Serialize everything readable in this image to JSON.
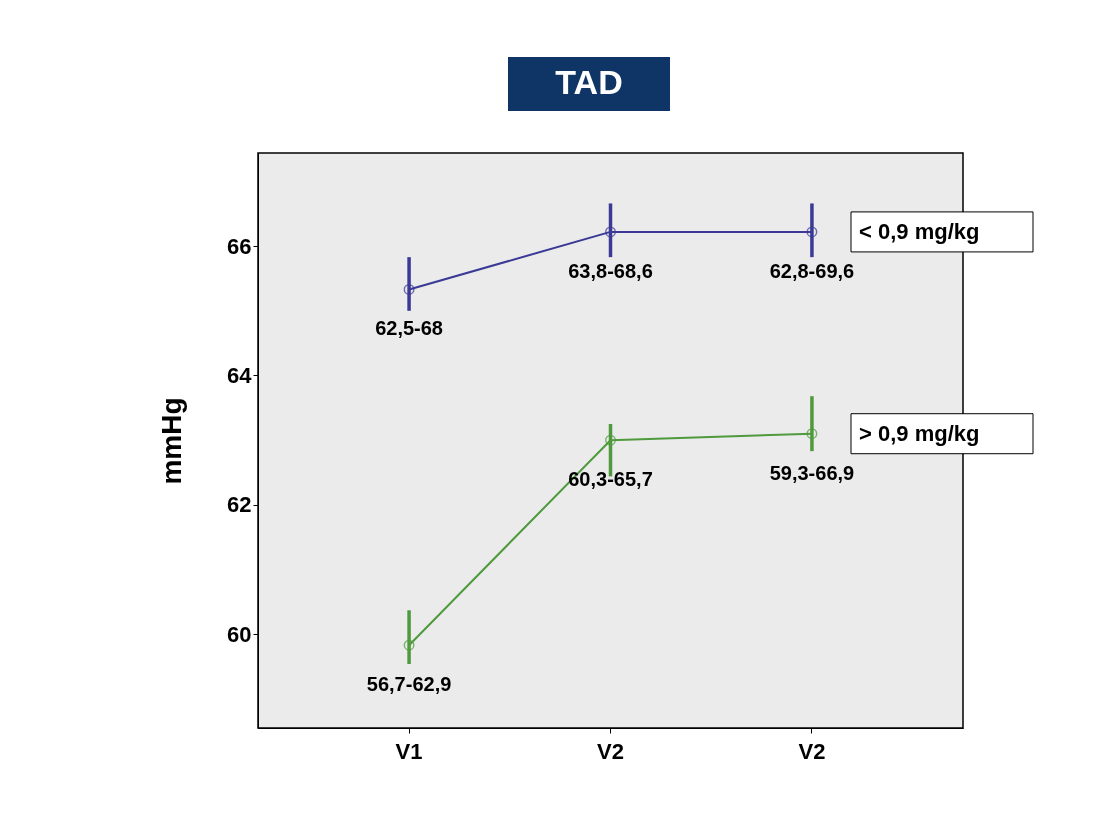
{
  "chart_data": {
    "type": "line",
    "title": "TAD",
    "ylabel": "mmHg",
    "categories": [
      "V1",
      "V2",
      "V2"
    ],
    "series": [
      {
        "name": "< 0,9 mg/kg",
        "color": "#3a3a96",
        "values": [
          65.33,
          66.22,
          66.22
        ],
        "errors": [
          [
            65.0,
            65.83
          ],
          [
            65.83,
            66.66
          ],
          [
            65.83,
            66.66
          ]
        ]
      },
      {
        "name": "> 0,9 mg/kg",
        "color": "#4e9a3c",
        "values": [
          59.83,
          63.0,
          63.1
        ],
        "errors": [
          [
            59.54,
            60.37
          ],
          [
            62.44,
            63.25
          ],
          [
            62.83,
            63.68
          ]
        ]
      }
    ],
    "annotations": [
      "62,5-68",
      "63,8-68,6",
      "62,8-69,6",
      "56,7-62,9",
      "60,3-65,7",
      "59,3-66,9"
    ],
    "ylim": [
      58.55,
      67.44
    ],
    "yticks": [
      60,
      62,
      64,
      66
    ],
    "grid": false,
    "marker": "circle",
    "line_style": "solid"
  }
}
